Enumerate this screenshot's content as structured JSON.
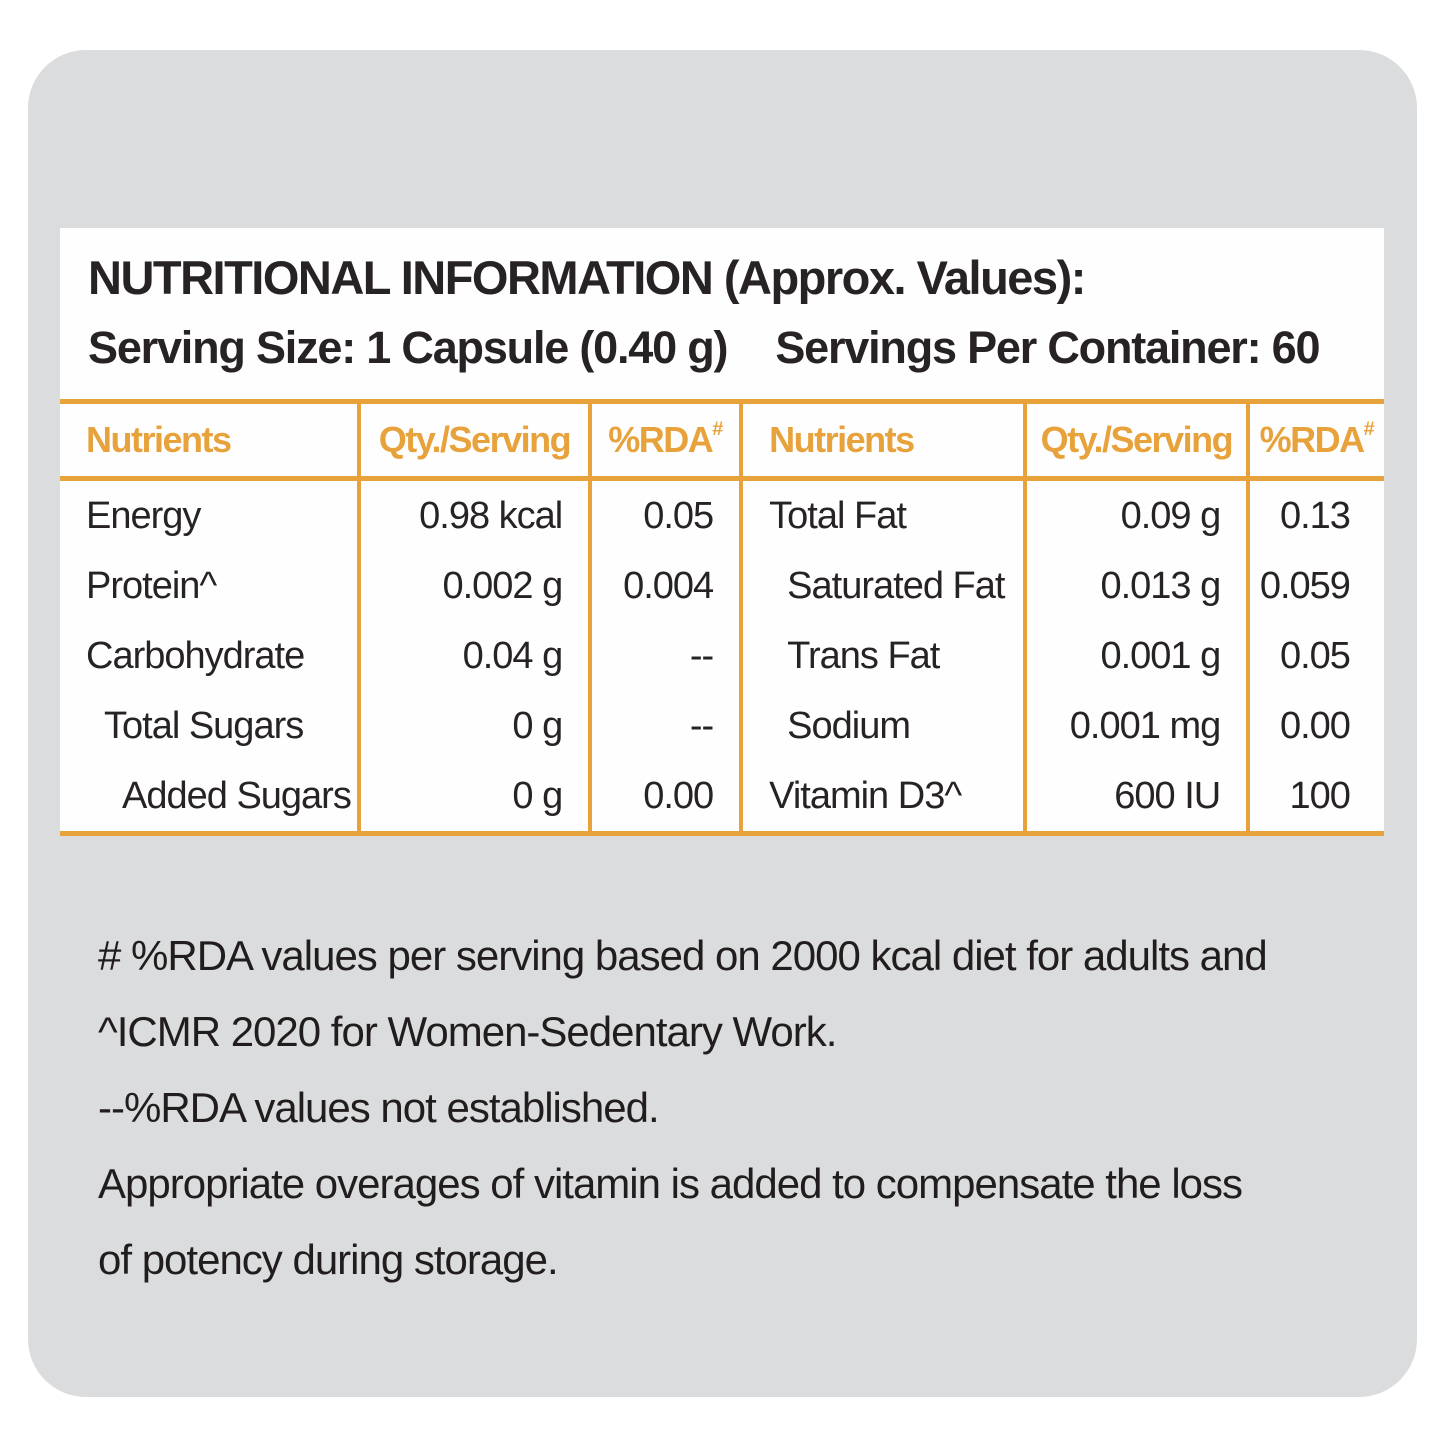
{
  "colors": {
    "accent": "#e8a23c",
    "panel_bg": "#dbdcdd",
    "card_bg": "#fefefe",
    "text": "#272324"
  },
  "title": "NUTRITIONAL INFORMATION (Approx. Values):",
  "serving": {
    "size": "Serving Size: 1 Capsule (0.40 g)",
    "per_container": "Servings Per Container: 60"
  },
  "table": {
    "headers": {
      "nutrients": "Nutrients",
      "qty": "Qty./Serving",
      "rda": "%RDA",
      "rda_sup": "#"
    },
    "left_rows": [
      {
        "name": "Energy",
        "qty": "0.98 kcal",
        "rda": "0.05",
        "indent": 0
      },
      {
        "name": "Protein^",
        "qty": "0.002 g",
        "rda": "0.004",
        "indent": 0
      },
      {
        "name": "Carbohydrate",
        "qty": "0.04 g",
        "rda": "--",
        "indent": 0
      },
      {
        "name": "Total Sugars",
        "qty": "0 g",
        "rda": "--",
        "indent": 1
      },
      {
        "name": "Added Sugars",
        "qty": "0 g",
        "rda": "0.00",
        "indent": 2
      }
    ],
    "right_rows": [
      {
        "name": "Total Fat",
        "qty": "0.09 g",
        "rda": "0.13",
        "indent": 0
      },
      {
        "name": "Saturated Fat",
        "qty": "0.013 g",
        "rda": "0.059",
        "indent": 1
      },
      {
        "name": "Trans Fat",
        "qty": "0.001 g",
        "rda": "0.05",
        "indent": 1
      },
      {
        "name": "Sodium",
        "qty": "0.001 mg",
        "rda": "0.00",
        "indent": 1
      },
      {
        "name": "Vitamin D3^",
        "qty": "600 IU",
        "rda": "100",
        "indent": 0
      }
    ]
  },
  "footnotes": [
    "# %RDA values per serving based on 2000 kcal diet for adults and",
    "^ICMR 2020 for Women-Sedentary Work.",
    "--%RDA values not established.",
    "Appropriate overages of vitamin is added to compensate the loss",
    "of potency during storage."
  ]
}
